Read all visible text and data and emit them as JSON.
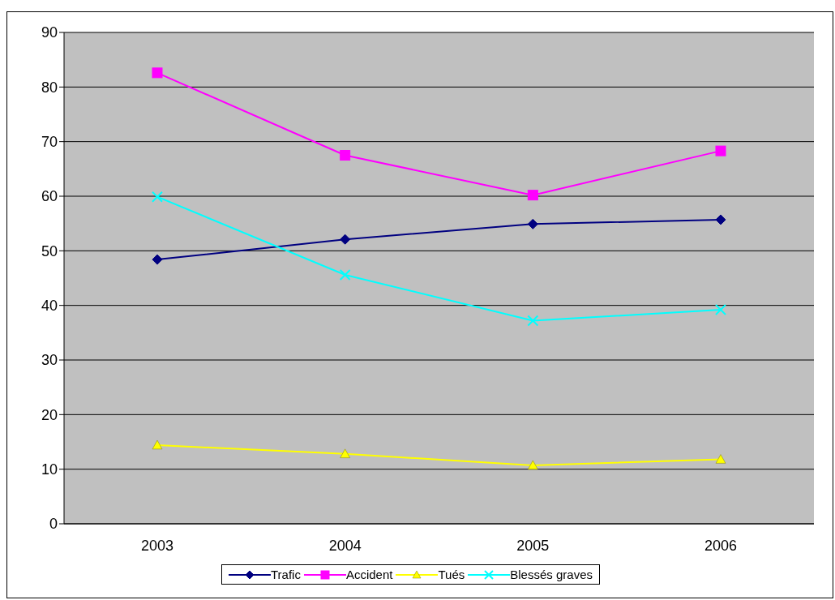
{
  "chart_data": {
    "type": "line",
    "categories": [
      "2003",
      "2004",
      "2005",
      "2006"
    ],
    "series": [
      {
        "name": "Trafic",
        "color": "#000080",
        "marker": "diamond",
        "values": [
          48.4,
          52.1,
          54.9,
          55.7
        ]
      },
      {
        "name": "Accident",
        "color": "#ff00ff",
        "marker": "square",
        "values": [
          82.6,
          67.5,
          60.2,
          68.3
        ]
      },
      {
        "name": "Tués",
        "color": "#ffff00",
        "marker": "triangle",
        "values": [
          14.4,
          12.8,
          10.7,
          11.8
        ]
      },
      {
        "name": "Blessés graves",
        "color": "#00ffff",
        "marker": "cross",
        "values": [
          59.9,
          45.6,
          37.2,
          39.2
        ]
      }
    ],
    "ylim": [
      0,
      90
    ],
    "yticks": [
      0,
      10,
      20,
      30,
      40,
      50,
      60,
      70,
      80,
      90
    ],
    "grid": "y",
    "legend": "bottom"
  }
}
